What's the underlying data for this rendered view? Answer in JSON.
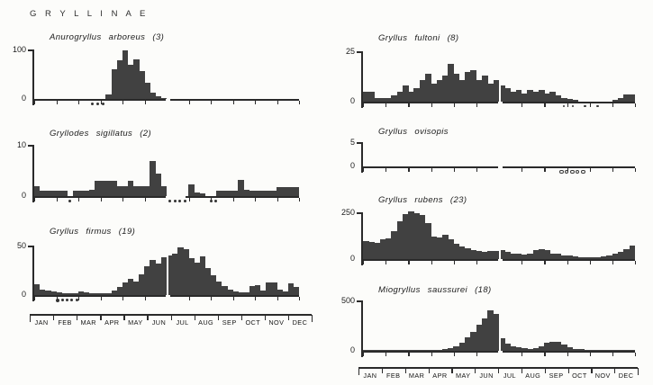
{
  "figure_title": "G R Y L L I N A E",
  "months": [
    "JAN",
    "FEB",
    "MAR",
    "APR",
    "MAY",
    "JUN",
    "JUL",
    "AUG",
    "SEP",
    "OCT",
    "NOV",
    "DEC"
  ],
  "colors": {
    "bar": "#414141",
    "axis": "#2a2a2a",
    "text": "#1d1d1d",
    "background": "#fcfcfa"
  },
  "x_resolution": "weekly (4 bars per month, 48 per year)",
  "chart_data": [
    {
      "type": "bar",
      "title": "Anurogryllus arboreus (3)",
      "ymax_label": "100",
      "y0_label": "0",
      "ylim": [
        0,
        100
      ],
      "x_months": [
        "JAN",
        "FEB",
        "MAR",
        "APR",
        "MAY",
        "JUN",
        "JUL",
        "AUG",
        "SEP",
        "OCT",
        "NOV",
        "DEC"
      ],
      "values": [
        0,
        0,
        0,
        0,
        0,
        0,
        0,
        0,
        0,
        0,
        0,
        0,
        0,
        10,
        62,
        79,
        100,
        70,
        81,
        57,
        33,
        13,
        5,
        2,
        0,
        0,
        0,
        0,
        0,
        0,
        0,
        0,
        0,
        0,
        0,
        0,
        0,
        0,
        0,
        0,
        0,
        0,
        0,
        0,
        0,
        0,
        0,
        0
      ],
      "axis_gap_weeks": [
        23.8,
        24.6
      ],
      "markers": [
        {
          "style": "dot",
          "weeks": [
            10.3,
            11.3,
            12.2
          ]
        }
      ]
    },
    {
      "type": "bar",
      "title": "Gryllodes  sigillatus  (2)",
      "ymax_label": "10",
      "y0_label": "0",
      "ylim": [
        0,
        10
      ],
      "x_months": [
        "JAN",
        "FEB",
        "MAR",
        "APR",
        "MAY",
        "JUN",
        "JUL",
        "AUG",
        "SEP",
        "OCT",
        "NOV",
        "DEC"
      ],
      "values": [
        2,
        1,
        1,
        1,
        1,
        1,
        0,
        1,
        1,
        1,
        1.2,
        3,
        3,
        3,
        3,
        2,
        2,
        3,
        2,
        2,
        2,
        7,
        4.5,
        2,
        0,
        0,
        0,
        0,
        2.4,
        0.8,
        0.5,
        0,
        0,
        1,
        1,
        1,
        1,
        3.3,
        1.2,
        1,
        1,
        1,
        1,
        1,
        1.8,
        1.8,
        1.8,
        1.8
      ],
      "axis_gap_weeks": [
        23.9,
        27.4
      ],
      "markers": [
        {
          "style": "dot",
          "weeks": [
            6.2
          ]
        },
        {
          "style": "dot",
          "weeks": [
            24.4,
            25.3,
            26.2,
            27.1
          ]
        },
        {
          "style": "dot",
          "weeks": [
            31.8,
            32.7
          ]
        }
      ]
    },
    {
      "type": "bar",
      "title": "Gryllus  firmus  (19)",
      "ymax_label": "50",
      "y0_label": "0",
      "ylim": [
        0,
        50
      ],
      "x_months": [
        "JAN",
        "FEB",
        "MAR",
        "APR",
        "MAY",
        "JUN",
        "JUL",
        "AUG",
        "SEP",
        "OCT",
        "NOV",
        "DEC"
      ],
      "values": [
        11,
        6,
        5,
        4,
        3,
        2,
        2,
        2,
        4,
        3,
        2,
        2,
        2,
        2,
        5,
        8,
        13,
        17,
        14,
        21,
        30,
        36,
        32,
        39,
        41,
        43,
        49,
        47,
        38,
        33,
        40,
        28,
        20,
        14,
        9,
        6,
        4,
        3,
        3,
        9,
        10,
        5,
        13,
        13,
        6,
        4,
        12,
        8
      ],
      "axis_gap_weeks": [
        23.8,
        24.6
      ],
      "markers": [
        {
          "style": "dot",
          "first_large": true,
          "weeks": [
            3.9,
            4.9,
            5.7,
            6.5,
            7.5
          ]
        }
      ]
    },
    {
      "type": "bar",
      "title": "Gryllus  fultoni  (8)",
      "ymax_label": "25",
      "y0_label": "0",
      "ylim": [
        0,
        25
      ],
      "x_months": [
        "JAN",
        "FEB",
        "MAR",
        "APR",
        "MAY",
        "JUN",
        "JUL",
        "AUG",
        "SEP",
        "OCT",
        "NOV",
        "DEC"
      ],
      "values": [
        5,
        5,
        2,
        2,
        2,
        3,
        5,
        8,
        5,
        7,
        11,
        14,
        9,
        11,
        13,
        19,
        14,
        11,
        15,
        16,
        11,
        13,
        9,
        11,
        8,
        7,
        5,
        6,
        4,
        6,
        5,
        6,
        4,
        5,
        3,
        2,
        1.5,
        1,
        0,
        0,
        0,
        0,
        0,
        0,
        1,
        2,
        3.5,
        3.5
      ],
      "axis_gap_weeks": [
        23.8,
        24.6
      ],
      "markers": [
        {
          "style": "small-dot",
          "weeks": [
            35.3,
            36.9,
            39,
            41.2
          ]
        }
      ]
    },
    {
      "type": "bar",
      "title": "Gryllus  ovisopis",
      "ymax_label": "5",
      "y0_label": "0",
      "ylim": [
        0,
        5
      ],
      "x_months": [
        "JAN",
        "FEB",
        "MAR",
        "APR",
        "MAY",
        "JUN",
        "JUL",
        "AUG",
        "SEP",
        "OCT",
        "NOV",
        "DEC"
      ],
      "values": [
        0,
        0,
        0,
        0,
        0,
        0,
        0,
        0,
        0,
        0,
        0,
        0,
        0,
        0,
        0,
        0,
        0,
        0,
        0,
        0,
        0,
        0,
        0,
        0,
        0,
        0,
        0,
        0,
        0,
        0,
        0,
        0,
        0,
        0,
        0,
        0,
        0,
        0,
        0,
        0,
        0,
        0,
        0,
        0,
        0,
        0,
        0,
        0
      ],
      "axis_gap_weeks": [
        23.8,
        24.6
      ],
      "markers": [
        {
          "style": "open-circle",
          "weeks": [
            34.7,
            35.6,
            36.6,
            37.5,
            38.5
          ]
        }
      ]
    },
    {
      "type": "bar",
      "title": "Gryllus  rubens  (23)",
      "ymax_label": "250",
      "y0_label": "0",
      "ylim": [
        0,
        250
      ],
      "x_months": [
        "JAN",
        "FEB",
        "MAR",
        "APR",
        "MAY",
        "JUN",
        "JUL",
        "AUG",
        "SEP",
        "OCT",
        "NOV",
        "DEC"
      ],
      "values": [
        100,
        95,
        90,
        108,
        115,
        150,
        205,
        245,
        262,
        248,
        240,
        195,
        125,
        118,
        130,
        108,
        85,
        70,
        60,
        50,
        45,
        40,
        42,
        44,
        48,
        40,
        30,
        28,
        25,
        28,
        50,
        55,
        48,
        30,
        28,
        22,
        18,
        14,
        12,
        10,
        10,
        12,
        15,
        18,
        28,
        40,
        55,
        75
      ],
      "axis_gap_weeks": [
        23.8,
        24.6
      ],
      "markers": []
    },
    {
      "type": "bar",
      "title": "Miogryllus  saussurei  (18)",
      "ymax_label": "500",
      "y0_label": "0",
      "ylim": [
        0,
        500
      ],
      "x_months": [
        "JAN",
        "FEB",
        "MAR",
        "APR",
        "MAY",
        "JUN",
        "JUL",
        "AUG",
        "SEP",
        "OCT",
        "NOV",
        "DEC"
      ],
      "values": [
        8,
        6,
        5,
        5,
        5,
        5,
        5,
        6,
        6,
        6,
        8,
        8,
        10,
        12,
        18,
        28,
        45,
        80,
        140,
        190,
        260,
        330,
        405,
        375,
        130,
        75,
        50,
        38,
        28,
        22,
        28,
        45,
        80,
        95,
        90,
        60,
        38,
        22,
        14,
        10,
        8,
        6,
        5,
        5,
        5,
        4,
        6,
        5
      ],
      "axis_gap_weeks": [
        23.8,
        24.6
      ],
      "markers": []
    }
  ]
}
